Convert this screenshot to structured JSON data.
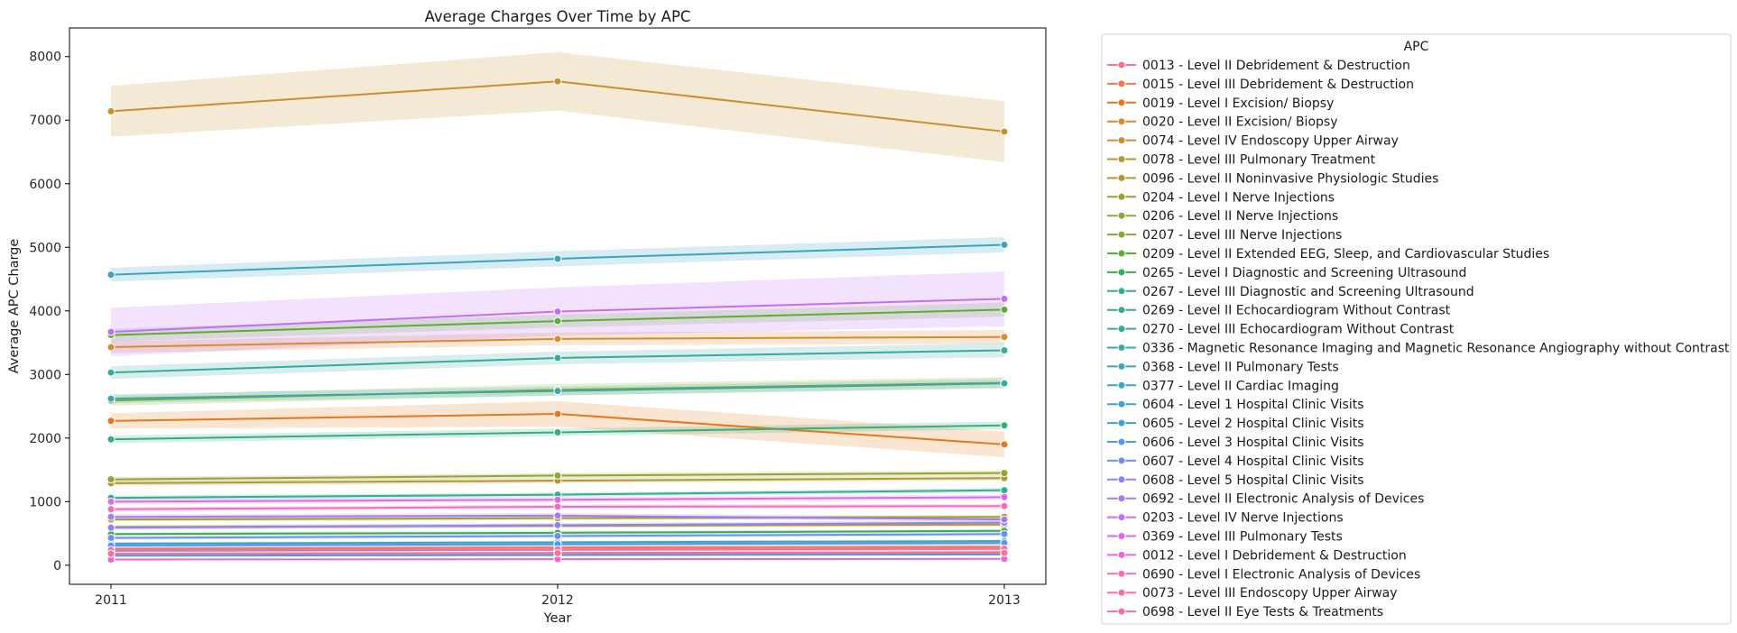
{
  "chart_data": {
    "type": "line",
    "title": "Average Charges Over Time by APC",
    "xlabel": "Year",
    "ylabel": "Average APC Charge",
    "categories": [
      "2011",
      "2012",
      "2013"
    ],
    "y_ticks": [
      0,
      1000,
      2000,
      3000,
      4000,
      5000,
      6000,
      7000,
      8000
    ],
    "ylim": [
      -300,
      8450
    ],
    "legend_title": "APC",
    "legend_placement": "outside-right",
    "grid": false,
    "series": [
      {
        "name": "0013 - Level II Debridement & Destruction",
        "color": "#f77189",
        "values": [
          180,
          195,
          205
        ],
        "ci": [
          40,
          45,
          45
        ]
      },
      {
        "name": "0015 - Level III Debridement & Destruction",
        "color": "#f27652",
        "values": [
          260,
          280,
          290
        ],
        "ci": [
          50,
          55,
          55
        ]
      },
      {
        "name": "0019 - Level I Excision/ Biopsy",
        "color": "#e4771d",
        "values": [
          2270,
          2380,
          1900
        ],
        "ci": [
          120,
          200,
          200
        ]
      },
      {
        "name": "0020 - Level II Excision/ Biopsy",
        "color": "#d98a32",
        "values": [
          3430,
          3560,
          3590
        ],
        "ci": [
          90,
          100,
          110
        ]
      },
      {
        "name": "0074 - Level IV Endoscopy Upper Airway",
        "color": "#c8902d",
        "values": [
          7140,
          7610,
          6820
        ],
        "ci": [
          400,
          460,
          480
        ]
      },
      {
        "name": "0078 - Level III Pulmonary Treatment",
        "color": "#bb962b",
        "values": [
          600,
          620,
          640
        ],
        "ci": [
          30,
          30,
          30
        ]
      },
      {
        "name": "0096 - Level II Noninvasive Physiologic Studies",
        "color": "#ae9a31",
        "values": [
          1290,
          1330,
          1370
        ],
        "ci": [
          40,
          40,
          40
        ]
      },
      {
        "name": "0204 - Level I Nerve Injections",
        "color": "#a19f30",
        "values": [
          720,
          740,
          760
        ],
        "ci": [
          30,
          30,
          30
        ]
      },
      {
        "name": "0206 - Level II Nerve Injections",
        "color": "#96a331",
        "values": [
          1350,
          1410,
          1450
        ],
        "ci": [
          40,
          40,
          40
        ]
      },
      {
        "name": "0207 - Level III Nerve Injections",
        "color": "#7fa931",
        "values": [
          2590,
          2760,
          2870
        ],
        "ci": [
          80,
          90,
          90
        ]
      },
      {
        "name": "0209 - Level II Extended EEG, Sleep, and Cardiovascular Studies",
        "color": "#5cae31",
        "values": [
          3620,
          3840,
          4020
        ],
        "ci": [
          100,
          100,
          110
        ]
      },
      {
        "name": "0265 - Level I Diagnostic and Screening Ultrasound",
        "color": "#37ad56",
        "values": [
          490,
          510,
          540
        ],
        "ci": [
          25,
          25,
          25
        ]
      },
      {
        "name": "0267 - Level III Diagnostic and Screening Ultrasound",
        "color": "#36ad7b",
        "values": [
          1980,
          2090,
          2200
        ],
        "ci": [
          60,
          60,
          60
        ]
      },
      {
        "name": "0269 - Level II Echocardiogram Without Contrast",
        "color": "#34ac90",
        "values": [
          1060,
          1110,
          1180
        ],
        "ci": [
          35,
          35,
          35
        ]
      },
      {
        "name": "0270 - Level III Echocardiogram Without Contrast",
        "color": "#36aa9e",
        "values": [
          3030,
          3260,
          3380
        ],
        "ci": [
          100,
          100,
          110
        ]
      },
      {
        "name": "0336 - Magnetic Resonance Imaging and Magnetic Resonance Angiography without Contrast",
        "color": "#37a9a9",
        "values": [
          2620,
          2740,
          2860
        ],
        "ci": [
          70,
          70,
          70
        ]
      },
      {
        "name": "0368 - Level II Pulmonary Tests",
        "color": "#38a8b5",
        "values": [
          340,
          360,
          380
        ],
        "ci": [
          25,
          25,
          25
        ]
      },
      {
        "name": "0377 - Level II Cardiac Imaging",
        "color": "#3aa5c1",
        "values": [
          4570,
          4820,
          5040
        ],
        "ci": [
          110,
          120,
          120
        ]
      },
      {
        "name": "0604 - Level 1 Hospital Clinic Visits",
        "color": "#3ba3d1",
        "values": [
          150,
          160,
          170
        ],
        "ci": [
          15,
          15,
          15
        ]
      },
      {
        "name": "0605 - Level 2 Hospital Clinic Visits",
        "color": "#3d9ee3",
        "values": [
          230,
          245,
          260
        ],
        "ci": [
          20,
          20,
          20
        ]
      },
      {
        "name": "0606 - Level 3 Hospital Clinic Visits",
        "color": "#4f98f3",
        "values": [
          310,
          330,
          350
        ],
        "ci": [
          25,
          25,
          25
        ]
      },
      {
        "name": "0607 - Level 4 Hospital Clinic Visits",
        "color": "#6c8ff4",
        "values": [
          430,
          460,
          490
        ],
        "ci": [
          30,
          30,
          30
        ]
      },
      {
        "name": "0608 - Level 5 Hospital Clinic Visits",
        "color": "#8b85f4",
        "values": [
          590,
          630,
          670
        ],
        "ci": [
          35,
          35,
          35
        ]
      },
      {
        "name": "0692 - Level II Electronic Analysis of Devices",
        "color": "#a67af4",
        "values": [
          760,
          780,
          720
        ],
        "ci": [
          40,
          40,
          40
        ]
      },
      {
        "name": "0203 - Level IV Nerve Injections",
        "color": "#c46ef3",
        "values": [
          3670,
          3990,
          4190
        ],
        "ci": [
          380,
          380,
          430
        ]
      },
      {
        "name": "0369 - Level III Pulmonary Tests",
        "color": "#dd68ea",
        "values": [
          1000,
          1030,
          1070
        ],
        "ci": [
          40,
          40,
          40
        ]
      },
      {
        "name": "0012 - Level I Debridement & Destruction",
        "color": "#ed65d8",
        "values": [
          90,
          95,
          100
        ],
        "ci": [
          10,
          10,
          10
        ]
      },
      {
        "name": "0690 - Level I Electronic Analysis of Devices",
        "color": "#f46bc0",
        "values": [
          880,
          920,
          930
        ],
        "ci": [
          35,
          35,
          35
        ]
      },
      {
        "name": "0073 - Level III Endoscopy Upper Airway",
        "color": "#f56ea8",
        "values": [
          240,
          250,
          260
        ],
        "ci": [
          20,
          20,
          20
        ]
      },
      {
        "name": "0698 - Level II Eye Tests & Treatments",
        "color": "#f5709b",
        "values": [
          180,
          190,
          195
        ],
        "ci": [
          15,
          15,
          15
        ]
      }
    ]
  }
}
